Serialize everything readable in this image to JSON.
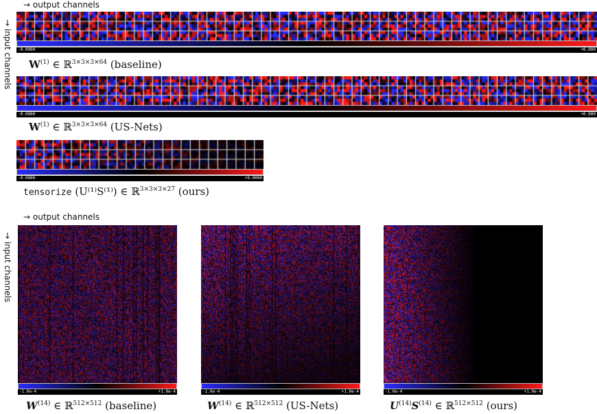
{
  "axis_text": {
    "out_top": "→ output channels",
    "in_top": "→ input channels",
    "out_bottom": "→ output channels",
    "in_bottom": "→ input channels"
  },
  "top_panels": [
    {
      "caption_pre": "W",
      "caption_sup": "(1)",
      "caption_mid": " ∈ ℝ",
      "caption_dims": "3×3×3×64",
      "caption_post": " (baseline)",
      "cbar_lo": "-0.0000",
      "cbar_hi": "+0.000",
      "columns": 64
    },
    {
      "caption_pre": "W",
      "caption_sup": "(1)",
      "caption_mid": " ∈ ℝ",
      "caption_dims": "3×3×3×64",
      "caption_post": " (US-Nets)",
      "cbar_lo": "-0.0000",
      "cbar_hi": "+0.000",
      "columns": 64
    },
    {
      "caption_code": "tensorize",
      "caption_expr": "(U⁽¹⁾S⁽¹⁾) ∈ ℝ",
      "caption_dims": "3×3×3×27",
      "caption_post": " (ours)",
      "cbar_lo": "-0.0000",
      "cbar_hi": "+0.0000",
      "columns": 27
    }
  ],
  "bottom_panels": [
    {
      "caption_pre": "W",
      "caption_sup": "(14)",
      "caption_mid": " ∈ ℝ",
      "caption_dims": "512×512",
      "caption_post": " (baseline)",
      "cbar_lo": "-1.0e-4",
      "cbar_hi": "+1.0e-4"
    },
    {
      "caption_pre": "W",
      "caption_sup": "(14)",
      "caption_mid": " ∈ ℝ",
      "caption_dims": "512×512",
      "caption_post": " (US-Nets)",
      "cbar_lo": "-1.0e-4",
      "cbar_hi": "+1.0e-4"
    },
    {
      "caption_pre": "U",
      "caption_sup": "(14)",
      "caption_pre2": "S",
      "caption_sup2": "(14)",
      "caption_mid": " ∈ ℝ",
      "caption_dims": "512×512",
      "caption_post": " (ours)",
      "cbar_lo": "-1.0e-4",
      "cbar_hi": "+1.0e-4"
    }
  ],
  "colors": {
    "negative": "#2b2bff",
    "zero": "#000000",
    "positive": "#ff1a1a",
    "grid": "#d8d8d8"
  }
}
